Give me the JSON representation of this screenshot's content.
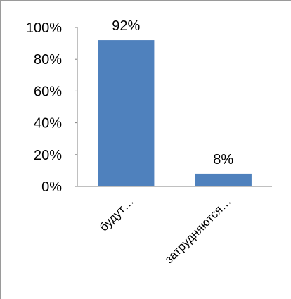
{
  "chart_data": {
    "type": "bar",
    "title": "",
    "xlabel": "",
    "ylabel": "",
    "categories": [
      "будут…",
      "затрудняются…"
    ],
    "values": [
      92,
      8
    ],
    "value_labels": [
      "92%",
      "8%"
    ],
    "ylim": [
      0,
      100
    ],
    "yticks": [
      0,
      20,
      40,
      60,
      80,
      100
    ],
    "ytick_labels": [
      "0%",
      "20%",
      "40%",
      "60%",
      "80%",
      "100%"
    ],
    "grid": false,
    "legend": "none",
    "bar_color": "#4f81bd",
    "axis_color": "#808080"
  }
}
